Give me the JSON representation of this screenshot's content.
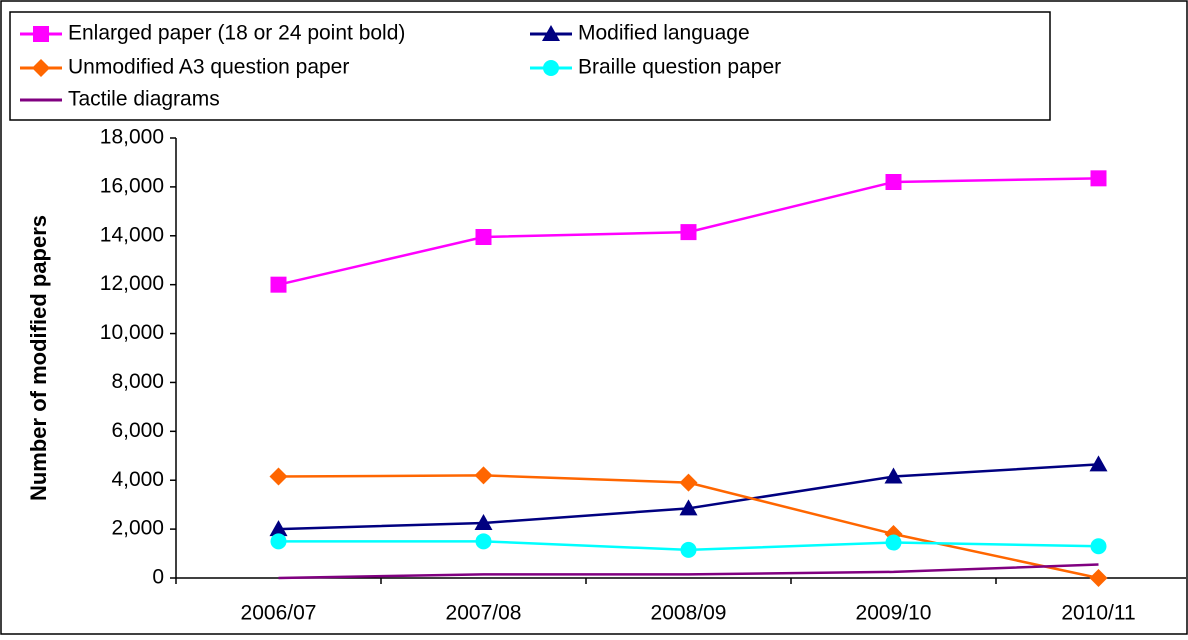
{
  "chart_data": {
    "type": "line",
    "y_label": "Number of modified papers",
    "categories": [
      "2006/07",
      "2007/08",
      "2008/09",
      "2009/10",
      "2010/11"
    ],
    "ylim": [
      0,
      18000
    ],
    "yticks": [
      0,
      {
        "value": 2000,
        "label": "2,000"
      },
      {
        "value": 4000,
        "label": "4,000"
      },
      {
        "value": 6000,
        "label": "6,000"
      },
      {
        "value": 8000,
        "label": "8,000"
      },
      {
        "value": 10000,
        "label": "10,000"
      },
      {
        "value": 12000,
        "label": "12,000"
      },
      {
        "value": 14000,
        "label": "14,000"
      },
      {
        "value": 16000,
        "label": "16,000"
      },
      {
        "value": 18000,
        "label": "18,000"
      }
    ],
    "series": [
      {
        "name": "Enlarged paper (18 or 24 point bold)",
        "color": "#ff00ff",
        "marker": "square",
        "values": [
          12000,
          13950,
          14150,
          16200,
          16350
        ]
      },
      {
        "name": "Modified language",
        "color": "#000080",
        "marker": "triangle",
        "values": [
          2000,
          2250,
          2850,
          4150,
          4650
        ]
      },
      {
        "name": "Unmodified A3 question paper",
        "color": "#ff6600",
        "marker": "diamond",
        "values": [
          4150,
          4200,
          3900,
          1800,
          0
        ]
      },
      {
        "name": "Braille question paper",
        "color": "#00ffff",
        "marker": "circle",
        "values": [
          1500,
          1500,
          1150,
          1450,
          1300
        ]
      },
      {
        "name": "Tactile diagrams",
        "color": "#800080",
        "marker": "none",
        "values": [
          0,
          150,
          150,
          250,
          550
        ]
      }
    ]
  }
}
